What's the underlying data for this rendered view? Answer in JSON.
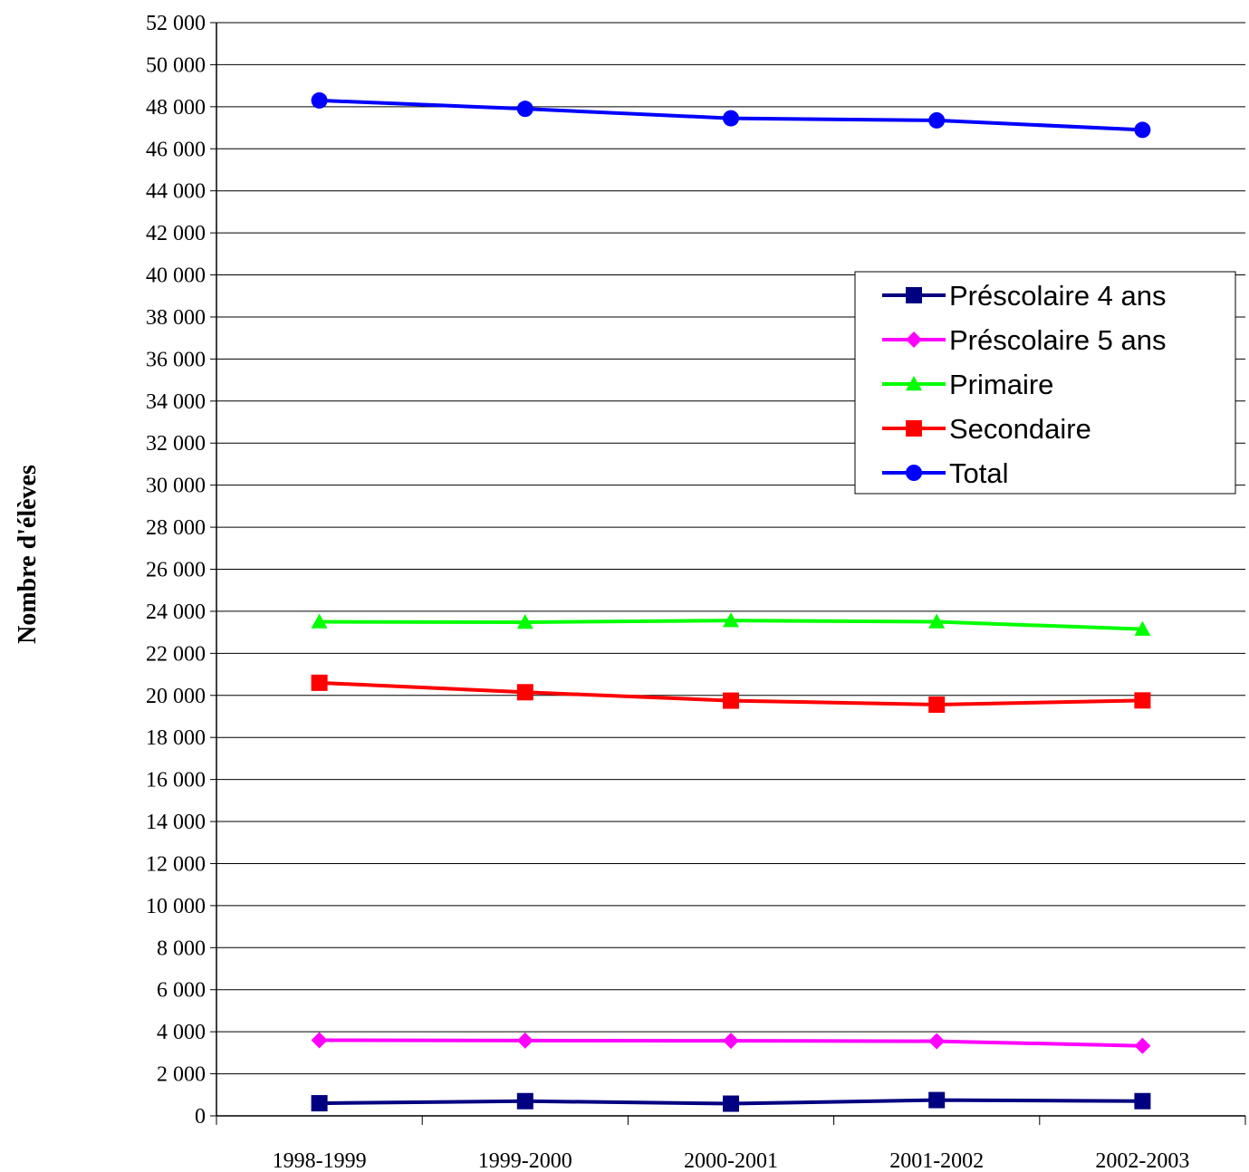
{
  "chart_data": {
    "type": "line",
    "title": "",
    "xlabel": "",
    "ylabel": "Nombre d'élèves",
    "categories": [
      "1998-1999",
      "1999-2000",
      "2000-2001",
      "2001-2002",
      "2002-2003"
    ],
    "ylim": [
      0,
      52000
    ],
    "ytick_step": 2000,
    "ytick_labels": [
      "0",
      "2 000",
      "4 000",
      "6 000",
      "8 000",
      "10 000",
      "12 000",
      "14 000",
      "16 000",
      "18 000",
      "20 000",
      "22 000",
      "24 000",
      "26 000",
      "28 000",
      "30 000",
      "32 000",
      "34 000",
      "36 000",
      "38 000",
      "40 000",
      "42 000",
      "44 000",
      "46 000",
      "48 000",
      "50 000",
      "52 000"
    ],
    "grid": "horizontal",
    "legend_position": "right",
    "series": [
      {
        "name": "Préscolaire 4 ans",
        "values": [
          600,
          700,
          580,
          750,
          700
        ],
        "color": "#000080",
        "marker": "square"
      },
      {
        "name": "Préscolaire 5 ans",
        "values": [
          3600,
          3580,
          3570,
          3550,
          3330
        ],
        "color": "#FF00FF",
        "marker": "diamond"
      },
      {
        "name": "Primaire",
        "values": [
          23500,
          23480,
          23560,
          23500,
          23150
        ],
        "color": "#00FF00",
        "marker": "triangle"
      },
      {
        "name": "Secondaire",
        "values": [
          20600,
          20150,
          19750,
          19560,
          19760
        ],
        "color": "#FF0000",
        "marker": "square"
      },
      {
        "name": "Total",
        "values": [
          48300,
          47900,
          47450,
          47350,
          46900
        ],
        "color": "#0000FF",
        "marker": "circle"
      }
    ]
  }
}
